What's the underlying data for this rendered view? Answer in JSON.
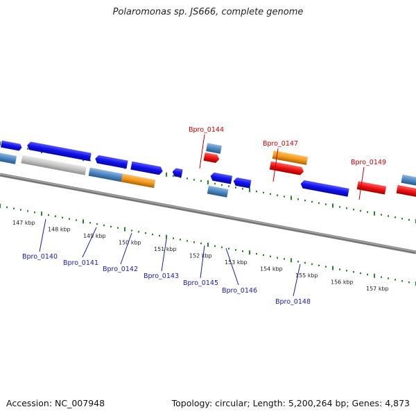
{
  "title": "Polaromonas sp. JS666, complete genome",
  "footer": {
    "accession": "Accession: NC_007948",
    "summary": "Topology: circular; Length: 5,200,264 bp; Genes: 4,873"
  },
  "colors": {
    "forward_cds": "#1a1aee",
    "reverse_cds": "#4a86c0",
    "rna": "#ee1111",
    "other": "#f39a1f",
    "pseudo": "#c4c4c4",
    "backbone": "#777777",
    "tick": "#1f8a1f",
    "label_top": "#cc0000",
    "label_bottom": "#1a1aaa"
  },
  "scale_labels": [
    "147 kbp",
    "148 kbp",
    "149 kbp",
    "150 kbp",
    "151 kbp",
    "152 kbp",
    "153 kbp",
    "154 kbp",
    "155 kbp",
    "156 kbp",
    "157 kbp"
  ],
  "gene_labels_top": [
    "Bpro_0144",
    "Bpro_0147",
    "Bpro_0149"
  ],
  "gene_labels_bottom": [
    "Bpro_0140",
    "Bpro_0141",
    "Bpro_0142",
    "Bpro_0143",
    "Bpro_0145",
    "Bpro_0146",
    "Bpro_0148"
  ]
}
